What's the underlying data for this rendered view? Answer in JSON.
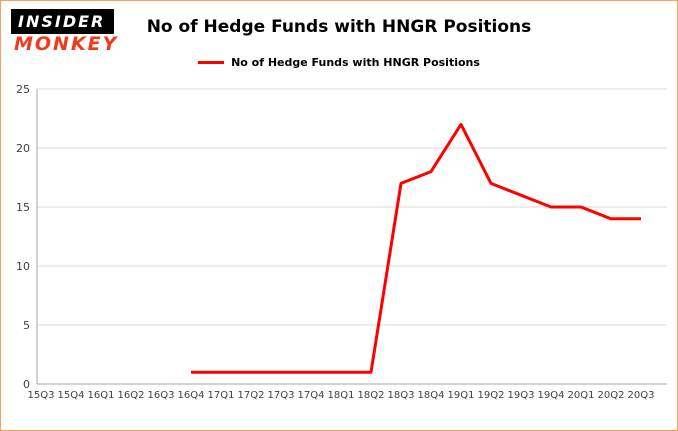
{
  "logo": {
    "line1": "INSIDER",
    "line2": "MONKEY"
  },
  "colors": {
    "line": "#fe0000",
    "logo_red": "#ef3b1d",
    "frame_border": "#f2a25e",
    "grid": "#d9d9d9",
    "axis": "#a6a6a6",
    "tick_text": "#404040"
  },
  "chart_data": {
    "type": "line",
    "title": "No of Hedge Funds with HNGR Positions",
    "legend": "No of Hedge Funds with HNGR Positions",
    "legend_position": "top",
    "grid": "horizontal",
    "categories": [
      "15Q3",
      "15Q4",
      "16Q1",
      "16Q2",
      "16Q3",
      "16Q4",
      "17Q1",
      "17Q2",
      "17Q3",
      "17Q4",
      "18Q1",
      "18Q2",
      "18Q3",
      "18Q4",
      "19Q1",
      "19Q2",
      "19Q3",
      "19Q4",
      "20Q1",
      "20Q2",
      "20Q3"
    ],
    "values": [
      null,
      null,
      null,
      null,
      null,
      1,
      1,
      1,
      1,
      1,
      1,
      1,
      17,
      18,
      22,
      17,
      16,
      15,
      15,
      14,
      14
    ],
    "ylim": [
      0,
      25
    ],
    "yticks": [
      0,
      5,
      10,
      15,
      20,
      25
    ]
  }
}
